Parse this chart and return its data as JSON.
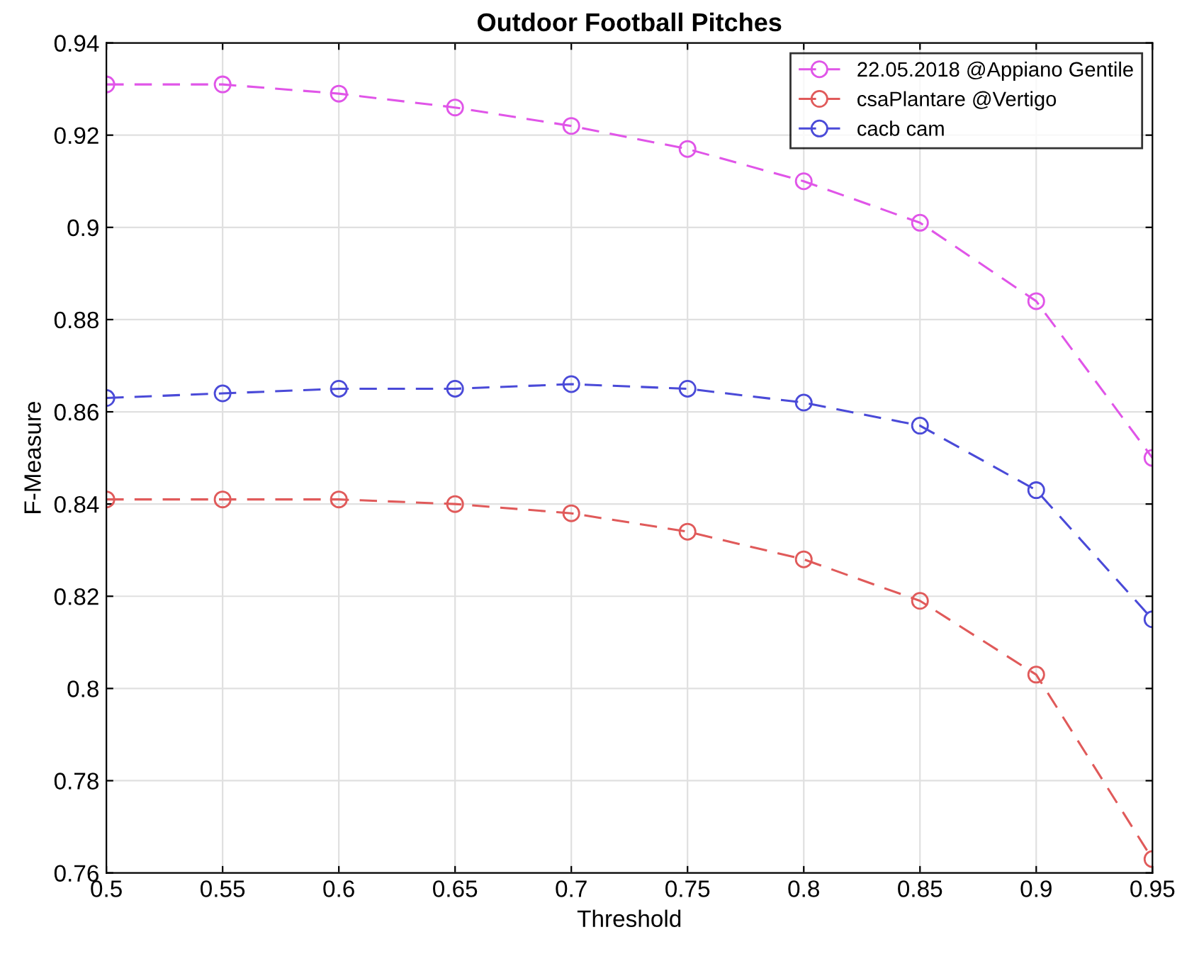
{
  "chart_data": {
    "type": "line",
    "title": "Outdoor Football Pitches",
    "xlabel": "Threshold",
    "ylabel": "F-Measure",
    "x": [
      0.5,
      0.55,
      0.6,
      0.65,
      0.7,
      0.75,
      0.8,
      0.85,
      0.9,
      0.95
    ],
    "series": [
      {
        "name": "22.05.2018 @Appiano Gentile",
        "color": "#e055e8",
        "values": [
          0.931,
          0.931,
          0.929,
          0.926,
          0.922,
          0.917,
          0.91,
          0.901,
          0.884,
          0.85
        ]
      },
      {
        "name": "csaPlantare @Vertigo",
        "color": "#e05a5a",
        "values": [
          0.841,
          0.841,
          0.841,
          0.84,
          0.838,
          0.834,
          0.828,
          0.819,
          0.803,
          0.763
        ]
      },
      {
        "name": "cacb cam",
        "color": "#4a4ad8",
        "values": [
          0.863,
          0.864,
          0.865,
          0.865,
          0.866,
          0.865,
          0.862,
          0.857,
          0.843,
          0.815
        ]
      }
    ],
    "xlim": [
      0.5,
      0.95
    ],
    "xticks": [
      0.5,
      0.55,
      0.6,
      0.65,
      0.7,
      0.75,
      0.8,
      0.85,
      0.9,
      0.95
    ],
    "ylim": [
      0.76,
      0.94
    ],
    "yticks": [
      0.76,
      0.78,
      0.8,
      0.82,
      0.84,
      0.86,
      0.88,
      0.9,
      0.92,
      0.94
    ],
    "grid": true,
    "legend": "top right",
    "marker": "circle",
    "line_style": "dashed"
  }
}
